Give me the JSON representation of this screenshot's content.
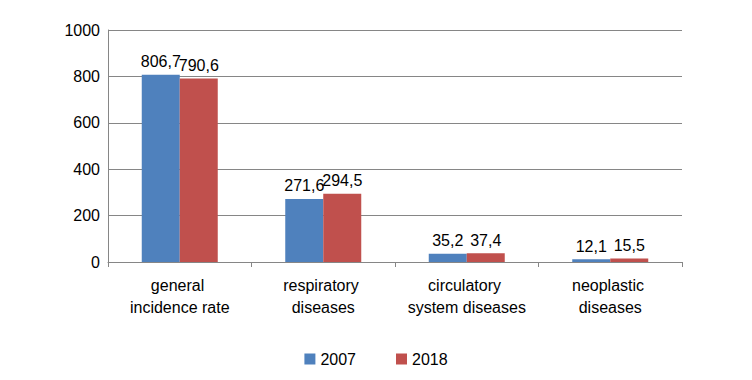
{
  "chart_data": {
    "type": "bar",
    "categories": [
      "general incidence rate",
      "respiratory diseases",
      "circulatory system diseases",
      "neoplastic diseases"
    ],
    "series": [
      {
        "name": "2007",
        "color": "#4f81bd",
        "values": [
          806.7,
          271.6,
          35.2,
          12.1
        ],
        "value_labels": [
          "806,7",
          "271,6",
          "35,2",
          "12,1"
        ]
      },
      {
        "name": "2018",
        "color": "#c0504d",
        "values": [
          790.6,
          294.5,
          37.4,
          15.5
        ],
        "value_labels": [
          "790,6",
          "294,5",
          "37,4",
          "15,5"
        ]
      }
    ],
    "ylim": [
      0,
      1000
    ],
    "yticks": [
      0,
      200,
      400,
      600,
      800,
      1000
    ],
    "grid": true,
    "legend": "bottom",
    "data_labels": true
  }
}
